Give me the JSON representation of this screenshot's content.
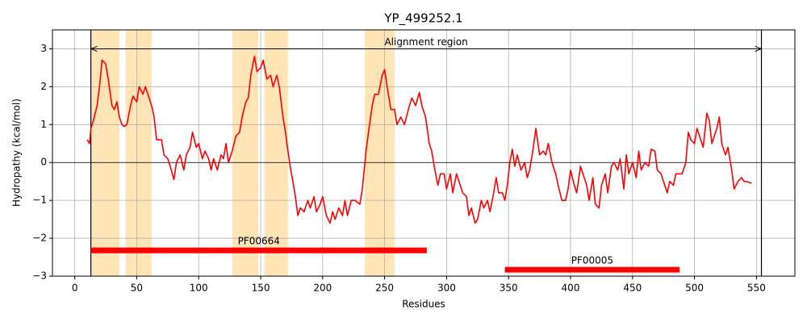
{
  "chart_data": {
    "type": "line",
    "title": "YP_499252.1",
    "xlabel": "Residues",
    "ylabel": "Hydropathy (kcal/mol)",
    "x": [
      10,
      12,
      13,
      15,
      18,
      20,
      22,
      25,
      27,
      30,
      32,
      34,
      36,
      38,
      40,
      42,
      45,
      47,
      50,
      52,
      55,
      57,
      60,
      62,
      64,
      66,
      70,
      72,
      75,
      77,
      80,
      82,
      85,
      88,
      90,
      93,
      95,
      98,
      100,
      103,
      105,
      108,
      110,
      112,
      115,
      118,
      120,
      122,
      124,
      127,
      130,
      133,
      135,
      138,
      140,
      142,
      145,
      147,
      150,
      152,
      155,
      158,
      160,
      163,
      165,
      168,
      170,
      172,
      174,
      176,
      178,
      180,
      182,
      185,
      188,
      190,
      193,
      195,
      198,
      200,
      203,
      206,
      208,
      210,
      213,
      216,
      218,
      220,
      223,
      226,
      230,
      232,
      235,
      237,
      240,
      242,
      245,
      248,
      250,
      252,
      255,
      258,
      260,
      263,
      266,
      270,
      272,
      275,
      278,
      280,
      283,
      286,
      288,
      290,
      293,
      295,
      298,
      300,
      303,
      305,
      308,
      310,
      313,
      316,
      318,
      320,
      323,
      325,
      328,
      330,
      333,
      335,
      338,
      340,
      342,
      345,
      347,
      349,
      351,
      353,
      355,
      357,
      360,
      363,
      365,
      367,
      370,
      372,
      375,
      378,
      380,
      382,
      385,
      388,
      390,
      393,
      396,
      398,
      400,
      403,
      405,
      408,
      410,
      413,
      415,
      418,
      420,
      423,
      425,
      428,
      430,
      433,
      435,
      438,
      440,
      443,
      445,
      447,
      450,
      453,
      455,
      457,
      460,
      463,
      465,
      468,
      470,
      473,
      475,
      478,
      480,
      483,
      485,
      488,
      490,
      493,
      495,
      497,
      500,
      502,
      505,
      507,
      510,
      512,
      514,
      516,
      518,
      520,
      522,
      525,
      527,
      530,
      532,
      535,
      538,
      540,
      542,
      546
    ],
    "values": [
      0.6,
      0.5,
      0.9,
      1.1,
      1.5,
      2.0,
      2.7,
      2.6,
      2.2,
      1.5,
      1.4,
      1.6,
      1.2,
      1.0,
      0.95,
      1.0,
      1.5,
      1.75,
      1.6,
      2.0,
      1.8,
      2.0,
      1.7,
      1.5,
      1.2,
      0.6,
      0.6,
      0.2,
      0.1,
      -0.1,
      -0.45,
      0.0,
      0.2,
      -0.2,
      0.2,
      0.4,
      0.8,
      0.4,
      0.5,
      0.1,
      0.3,
      0.1,
      -0.2,
      0.1,
      -0.2,
      0.2,
      0.1,
      0.5,
      0.0,
      0.3,
      0.7,
      0.8,
      1.2,
      1.6,
      1.7,
      2.3,
      2.8,
      2.4,
      2.5,
      2.7,
      2.2,
      2.3,
      2.0,
      2.3,
      2.0,
      1.2,
      0.8,
      0.3,
      -0.15,
      -0.5,
      -0.9,
      -1.4,
      -1.2,
      -1.3,
      -1.0,
      -1.2,
      -0.9,
      -1.3,
      -1.1,
      -0.9,
      -1.4,
      -1.6,
      -1.3,
      -1.5,
      -1.2,
      -1.4,
      -1.0,
      -1.4,
      -1.0,
      -1.0,
      -1.1,
      -0.7,
      0.3,
      0.8,
      1.5,
      1.8,
      1.8,
      2.3,
      2.45,
      2.0,
      1.4,
      1.4,
      1.0,
      1.2,
      1.0,
      1.5,
      1.7,
      1.5,
      1.85,
      1.5,
      1.2,
      0.5,
      0.3,
      -0.1,
      -0.6,
      -0.3,
      -0.3,
      -0.7,
      -0.3,
      -0.8,
      -0.3,
      -0.5,
      -0.8,
      -0.9,
      -1.4,
      -1.2,
      -1.6,
      -1.5,
      -1.0,
      -1.2,
      -1.0,
      -1.3,
      -0.8,
      -0.4,
      -0.8,
      -0.8,
      -1.0,
      -0.6,
      0.0,
      0.35,
      -0.1,
      0.2,
      -0.2,
      0.0,
      -0.4,
      -0.2,
      0.4,
      0.9,
      0.2,
      0.3,
      0.2,
      0.5,
      0.0,
      -0.3,
      -0.6,
      -1.0,
      -1.0,
      -0.7,
      -0.2,
      -0.6,
      -0.8,
      -0.1,
      -0.3,
      -0.6,
      -1.0,
      -0.4,
      -1.1,
      -1.2,
      -0.6,
      -0.3,
      -0.8,
      -0.1,
      0.0,
      -0.2,
      0.1,
      -0.7,
      0.2,
      -0.3,
      0.0,
      -0.4,
      0.3,
      -0.2,
      0.0,
      -0.1,
      0.35,
      0.3,
      -0.2,
      -0.3,
      -0.5,
      -0.8,
      -0.5,
      -0.6,
      -0.3,
      -0.3,
      -0.3,
      0.0,
      0.8,
      0.6,
      0.5,
      0.9,
      0.6,
      0.4,
      1.3,
      1.1,
      0.5,
      0.7,
      0.9,
      1.2,
      0.5,
      0.2,
      0.4,
      -0.2,
      -0.7,
      -0.5,
      -0.4,
      -0.5,
      -0.5,
      -0.55
    ],
    "color": "#ff0000",
    "regions": [
      {
        "start": 13,
        "end": 36
      },
      {
        "start": 41,
        "end": 62
      },
      {
        "start": 127,
        "end": 148
      },
      {
        "start": 153,
        "end": 172
      },
      {
        "start": 234,
        "end": 258
      }
    ],
    "region_color": "#ffe4b5",
    "alignment": {
      "label": "Alignment region",
      "start": 13,
      "end": 554,
      "y": 3
    },
    "domains": [
      {
        "label": "PF00664",
        "start": 13,
        "end": 284,
        "y": -2.32
      },
      {
        "label": "PF00005",
        "start": 347,
        "end": 488,
        "y": -2.83
      }
    ],
    "xlim": [
      -18,
      581
    ],
    "ylim": [
      -3,
      3.5
    ],
    "xticks": [
      0,
      50,
      100,
      150,
      200,
      250,
      300,
      350,
      400,
      450,
      500,
      550
    ],
    "yticks": [
      {
        "value": -3,
        "label": "−3"
      },
      {
        "value": -2,
        "label": "−2"
      },
      {
        "value": -1,
        "label": "−1"
      },
      0,
      1,
      2,
      3
    ],
    "grid": true
  }
}
